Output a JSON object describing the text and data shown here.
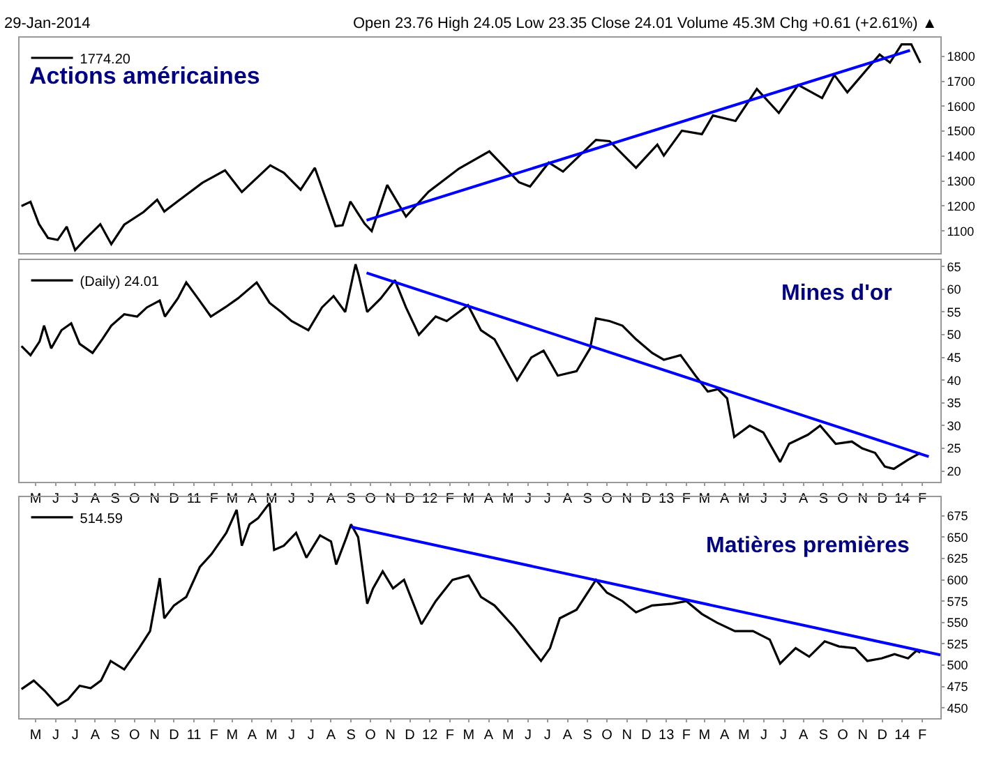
{
  "chart_data": [
    {
      "type": "line",
      "annotations": [
        "29-Jan-2014",
        "Open 23.76 High 24.05 Low 23.35 Close 24.01 Volume 45.3M Chg +0.61 (+2.61%) ▲",
        "Actions américaines"
      ],
      "xlim": [
        "2010-04-06",
        "2014-03-01"
      ],
      "ylim": [
        1010,
        1875
      ],
      "yticks": [
        1100,
        1200,
        1300,
        1400,
        1500,
        1600,
        1700,
        1800
      ],
      "tick_labels": "y",
      "grid": false,
      "legend": "top left",
      "series": [
        {
          "name": "1774.20",
          "color": "#000000",
          "x": [
            "2010-04-09",
            "2010-04-23",
            "2010-05-06",
            "2010-05-20",
            "2010-06-04",
            "2010-06-18",
            "2010-07-01",
            "2010-07-16",
            "2010-08-09",
            "2010-08-26",
            "2010-09-15",
            "2010-10-15",
            "2010-11-05",
            "2010-11-16",
            "2010-12-15",
            "2011-01-14",
            "2011-02-18",
            "2011-03-16",
            "2011-04-29",
            "2011-05-20",
            "2011-06-15",
            "2011-07-07",
            "2011-08-08",
            "2011-08-19",
            "2011-08-31",
            "2011-09-22",
            "2011-10-03",
            "2011-10-27",
            "2011-11-25",
            "2011-12-30",
            "2012-02-15",
            "2012-04-02",
            "2012-05-18",
            "2012-06-04",
            "2012-07-03",
            "2012-07-25",
            "2012-09-14",
            "2012-10-05",
            "2012-11-15",
            "2012-12-18",
            "2012-12-28",
            "2013-01-25",
            "2013-02-25",
            "2013-03-14",
            "2013-04-18",
            "2013-05-21",
            "2013-06-24",
            "2013-07-24",
            "2013-08-30",
            "2013-09-18",
            "2013-10-08",
            "2013-11-27",
            "2013-12-13",
            "2013-12-31",
            "2014-01-15",
            "2014-01-29"
          ],
          "values": [
            1200,
            1217,
            1128,
            1072,
            1064,
            1117,
            1023,
            1065,
            1127,
            1047,
            1125,
            1176,
            1225,
            1178,
            1235,
            1293,
            1343,
            1256,
            1363,
            1333,
            1265,
            1353,
            1119,
            1123,
            1218,
            1129,
            1099,
            1284,
            1158,
            1257,
            1350,
            1419,
            1295,
            1278,
            1374,
            1338,
            1465,
            1460,
            1353,
            1446,
            1402,
            1502,
            1488,
            1563,
            1541,
            1669,
            1573,
            1685,
            1633,
            1725,
            1656,
            1807,
            1775,
            1848,
            1848,
            1774
          ]
        },
        {
          "color": "#0000ff",
          "x": [
            "2011-09-25",
            "2014-01-13"
          ],
          "values": [
            1143,
            1824
          ]
        }
      ]
    },
    {
      "type": "line",
      "annotations": [
        "Mines d'or"
      ],
      "xlim": [
        "2010-04-06",
        "2014-03-01"
      ],
      "ylim": [
        17.6,
        66.4
      ],
      "yticks": [
        20,
        25,
        30,
        35,
        40,
        45,
        50,
        55,
        60,
        65
      ],
      "grid": false,
      "legend": "top left",
      "xticks": [
        {
          "value": "2010-05-01",
          "label": "M"
        },
        {
          "value": "2010-06-01",
          "label": "J"
        },
        {
          "value": "2010-07-01",
          "label": "J"
        },
        {
          "value": "2010-08-01",
          "label": "A"
        },
        {
          "value": "2010-09-01",
          "label": "S"
        },
        {
          "value": "2010-10-01",
          "label": "O"
        },
        {
          "value": "2010-11-01",
          "label": "N"
        },
        {
          "value": "2010-12-01",
          "label": "D"
        },
        {
          "value": "2011-01-01",
          "label": "11"
        },
        {
          "value": "2011-02-01",
          "label": "F"
        },
        {
          "value": "2011-03-01",
          "label": "M"
        },
        {
          "value": "2011-04-01",
          "label": "A"
        },
        {
          "value": "2011-05-01",
          "label": "M"
        },
        {
          "value": "2011-06-01",
          "label": "J"
        },
        {
          "value": "2011-07-01",
          "label": "J"
        },
        {
          "value": "2011-08-01",
          "label": "A"
        },
        {
          "value": "2011-09-01",
          "label": "S"
        },
        {
          "value": "2011-10-01",
          "label": "O"
        },
        {
          "value": "2011-11-01",
          "label": "N"
        },
        {
          "value": "2011-12-01",
          "label": "D"
        },
        {
          "value": "2012-01-01",
          "label": "12"
        },
        {
          "value": "2012-02-01",
          "label": "F"
        },
        {
          "value": "2012-03-01",
          "label": "M"
        },
        {
          "value": "2012-04-01",
          "label": "A"
        },
        {
          "value": "2012-05-01",
          "label": "M"
        },
        {
          "value": "2012-06-01",
          "label": "J"
        },
        {
          "value": "2012-07-01",
          "label": "J"
        },
        {
          "value": "2012-08-01",
          "label": "A"
        },
        {
          "value": "2012-09-01",
          "label": "S"
        },
        {
          "value": "2012-10-01",
          "label": "O"
        },
        {
          "value": "2012-11-01",
          "label": "N"
        },
        {
          "value": "2012-12-01",
          "label": "D"
        },
        {
          "value": "2013-01-01",
          "label": "13"
        },
        {
          "value": "2013-02-01",
          "label": "F"
        },
        {
          "value": "2013-03-01",
          "label": "M"
        },
        {
          "value": "2013-04-01",
          "label": "A"
        },
        {
          "value": "2013-05-01",
          "label": "M"
        },
        {
          "value": "2013-06-01",
          "label": "J"
        },
        {
          "value": "2013-07-01",
          "label": "J"
        },
        {
          "value": "2013-08-01",
          "label": "A"
        },
        {
          "value": "2013-09-01",
          "label": "S"
        },
        {
          "value": "2013-10-01",
          "label": "O"
        },
        {
          "value": "2013-11-01",
          "label": "N"
        },
        {
          "value": "2013-12-01",
          "label": "D"
        },
        {
          "value": "2014-01-01",
          "label": "14"
        },
        {
          "value": "2014-02-01",
          "label": "F"
        }
      ],
      "series": [
        {
          "name": "(Daily) 24.01",
          "color": "#000000",
          "x": [
            "2010-04-09",
            "2010-04-23",
            "2010-05-07",
            "2010-05-14",
            "2010-05-25",
            "2010-06-10",
            "2010-06-25",
            "2010-07-08",
            "2010-07-28",
            "2010-08-12",
            "2010-08-26",
            "2010-09-15",
            "2010-10-05",
            "2010-10-20",
            "2010-11-09",
            "2010-11-17",
            "2010-12-07",
            "2010-12-20",
            "2011-01-07",
            "2011-01-27",
            "2011-02-18",
            "2011-03-10",
            "2011-04-08",
            "2011-04-28",
            "2011-05-16",
            "2011-06-01",
            "2011-06-27",
            "2011-07-18",
            "2011-08-05",
            "2011-08-23",
            "2011-09-08",
            "2011-09-13",
            "2011-09-26",
            "2011-10-17",
            "2011-11-08",
            "2011-11-25",
            "2011-12-15",
            "2012-01-10",
            "2012-01-27",
            "2012-02-29",
            "2012-03-20",
            "2012-04-10",
            "2012-05-15",
            "2012-06-06",
            "2012-06-25",
            "2012-07-17",
            "2012-08-15",
            "2012-09-05",
            "2012-09-14",
            "2012-10-05",
            "2012-10-25",
            "2012-11-15",
            "2012-12-10",
            "2012-12-28",
            "2013-01-23",
            "2013-02-15",
            "2013-03-06",
            "2013-03-22",
            "2013-04-05",
            "2013-04-16",
            "2013-05-10",
            "2013-05-31",
            "2013-06-26",
            "2013-07-10",
            "2013-08-08",
            "2013-08-27",
            "2013-09-20",
            "2013-10-15",
            "2013-10-31",
            "2013-11-20",
            "2013-12-05",
            "2013-12-19",
            "2014-01-10",
            "2014-01-29"
          ],
          "values": [
            47.5,
            45.5,
            48.5,
            52,
            47,
            51,
            52.5,
            48,
            46,
            49,
            52,
            54.5,
            54,
            56,
            57.5,
            54,
            58,
            61.5,
            58,
            54,
            56,
            58,
            61.5,
            57,
            55,
            53,
            51,
            56,
            58.5,
            55,
            65.5,
            63,
            55,
            58,
            62,
            56,
            50,
            54,
            53,
            56.5,
            51,
            49,
            40,
            45,
            46.5,
            41,
            42,
            47,
            53.6,
            53,
            52,
            49,
            46,
            44.5,
            45.5,
            41,
            37.5,
            38,
            36,
            27.5,
            30,
            28.5,
            22,
            26,
            28,
            30,
            26,
            26.5,
            25,
            24,
            21,
            20.5,
            22.5,
            24
          ]
        },
        {
          "color": "#0000ff",
          "x": [
            "2011-09-25",
            "2014-02-11"
          ],
          "values": [
            63.6,
            23.2
          ]
        }
      ]
    },
    {
      "type": "line",
      "annotations": [
        "Matières premières"
      ],
      "xlim": [
        "2010-04-06",
        "2014-03-01"
      ],
      "ylim": [
        438,
        697
      ],
      "yticks": [
        450,
        475,
        500,
        525,
        550,
        575,
        600,
        625,
        650,
        675
      ],
      "grid": false,
      "legend": "top left",
      "xticks": [
        {
          "value": "2010-05-01",
          "label": "M"
        },
        {
          "value": "2010-06-01",
          "label": "J"
        },
        {
          "value": "2010-07-01",
          "label": "J"
        },
        {
          "value": "2010-08-01",
          "label": "A"
        },
        {
          "value": "2010-09-01",
          "label": "S"
        },
        {
          "value": "2010-10-01",
          "label": "O"
        },
        {
          "value": "2010-11-01",
          "label": "N"
        },
        {
          "value": "2010-12-01",
          "label": "D"
        },
        {
          "value": "2011-01-01",
          "label": "11"
        },
        {
          "value": "2011-02-01",
          "label": "F"
        },
        {
          "value": "2011-03-01",
          "label": "M"
        },
        {
          "value": "2011-04-01",
          "label": "A"
        },
        {
          "value": "2011-05-01",
          "label": "M"
        },
        {
          "value": "2011-06-01",
          "label": "J"
        },
        {
          "value": "2011-07-01",
          "label": "J"
        },
        {
          "value": "2011-08-01",
          "label": "A"
        },
        {
          "value": "2011-09-01",
          "label": "S"
        },
        {
          "value": "2011-10-01",
          "label": "O"
        },
        {
          "value": "2011-11-01",
          "label": "N"
        },
        {
          "value": "2011-12-01",
          "label": "D"
        },
        {
          "value": "2012-01-01",
          "label": "12"
        },
        {
          "value": "2012-02-01",
          "label": "F"
        },
        {
          "value": "2012-03-01",
          "label": "M"
        },
        {
          "value": "2012-04-01",
          "label": "A"
        },
        {
          "value": "2012-05-01",
          "label": "M"
        },
        {
          "value": "2012-06-01",
          "label": "J"
        },
        {
          "value": "2012-07-01",
          "label": "J"
        },
        {
          "value": "2012-08-01",
          "label": "A"
        },
        {
          "value": "2012-09-01",
          "label": "S"
        },
        {
          "value": "2012-10-01",
          "label": "O"
        },
        {
          "value": "2012-11-01",
          "label": "N"
        },
        {
          "value": "2012-12-01",
          "label": "D"
        },
        {
          "value": "2013-01-01",
          "label": "13"
        },
        {
          "value": "2013-02-01",
          "label": "F"
        },
        {
          "value": "2013-03-01",
          "label": "M"
        },
        {
          "value": "2013-04-01",
          "label": "A"
        },
        {
          "value": "2013-05-01",
          "label": "M"
        },
        {
          "value": "2013-06-01",
          "label": "J"
        },
        {
          "value": "2013-07-01",
          "label": "J"
        },
        {
          "value": "2013-08-01",
          "label": "A"
        },
        {
          "value": "2013-09-01",
          "label": "S"
        },
        {
          "value": "2013-10-01",
          "label": "O"
        },
        {
          "value": "2013-11-01",
          "label": "N"
        },
        {
          "value": "2013-12-01",
          "label": "D"
        },
        {
          "value": "2014-01-01",
          "label": "14"
        },
        {
          "value": "2014-02-01",
          "label": "F"
        }
      ],
      "series": [
        {
          "name": "514.59",
          "color": "#000000",
          "x": [
            "2010-04-09",
            "2010-04-28",
            "2010-05-15",
            "2010-06-04",
            "2010-06-20",
            "2010-07-08",
            "2010-07-25",
            "2010-08-10",
            "2010-08-25",
            "2010-09-15",
            "2010-10-08",
            "2010-10-25",
            "2010-11-09",
            "2010-11-16",
            "2010-12-01",
            "2010-12-20",
            "2011-01-10",
            "2011-01-28",
            "2011-02-20",
            "2011-03-08",
            "2011-03-16",
            "2011-03-28",
            "2011-04-10",
            "2011-04-28",
            "2011-05-05",
            "2011-05-20",
            "2011-06-08",
            "2011-06-24",
            "2011-07-15",
            "2011-08-01",
            "2011-08-09",
            "2011-08-25",
            "2011-09-01",
            "2011-09-12",
            "2011-09-26",
            "2011-10-05",
            "2011-10-20",
            "2011-11-05",
            "2011-11-22",
            "2011-12-19",
            "2012-01-10",
            "2012-02-05",
            "2012-03-01",
            "2012-03-20",
            "2012-04-10",
            "2012-05-10",
            "2012-06-05",
            "2012-06-21",
            "2012-07-05",
            "2012-07-20",
            "2012-08-15",
            "2012-09-14",
            "2012-10-01",
            "2012-10-25",
            "2012-11-15",
            "2012-12-10",
            "2013-01-10",
            "2013-02-01",
            "2013-02-25",
            "2013-03-20",
            "2013-04-17",
            "2013-05-15",
            "2013-06-10",
            "2013-06-26",
            "2013-07-20",
            "2013-08-10",
            "2013-09-03",
            "2013-09-25",
            "2013-10-20",
            "2013-11-08",
            "2013-11-30",
            "2013-12-20",
            "2014-01-10",
            "2014-01-23",
            "2014-01-29"
          ],
          "values": [
            472,
            482,
            470,
            453,
            460,
            476,
            473,
            482,
            505,
            495,
            520,
            540,
            602,
            555,
            570,
            580,
            615,
            630,
            655,
            682,
            640,
            665,
            672,
            690,
            635,
            640,
            655,
            626,
            652,
            645,
            618,
            650,
            665,
            650,
            572,
            590,
            610,
            590,
            600,
            548,
            575,
            600,
            605,
            580,
            570,
            545,
            520,
            505,
            520,
            555,
            565,
            600,
            585,
            575,
            562,
            570,
            572,
            575,
            560,
            550,
            540,
            540,
            530,
            502,
            520,
            510,
            528,
            522,
            520,
            505,
            508,
            513,
            508,
            517,
            515
          ]
        },
        {
          "color": "#0000ff",
          "x": [
            "2011-09-01",
            "2014-03-01"
          ],
          "values": [
            662,
            512
          ]
        }
      ]
    }
  ]
}
